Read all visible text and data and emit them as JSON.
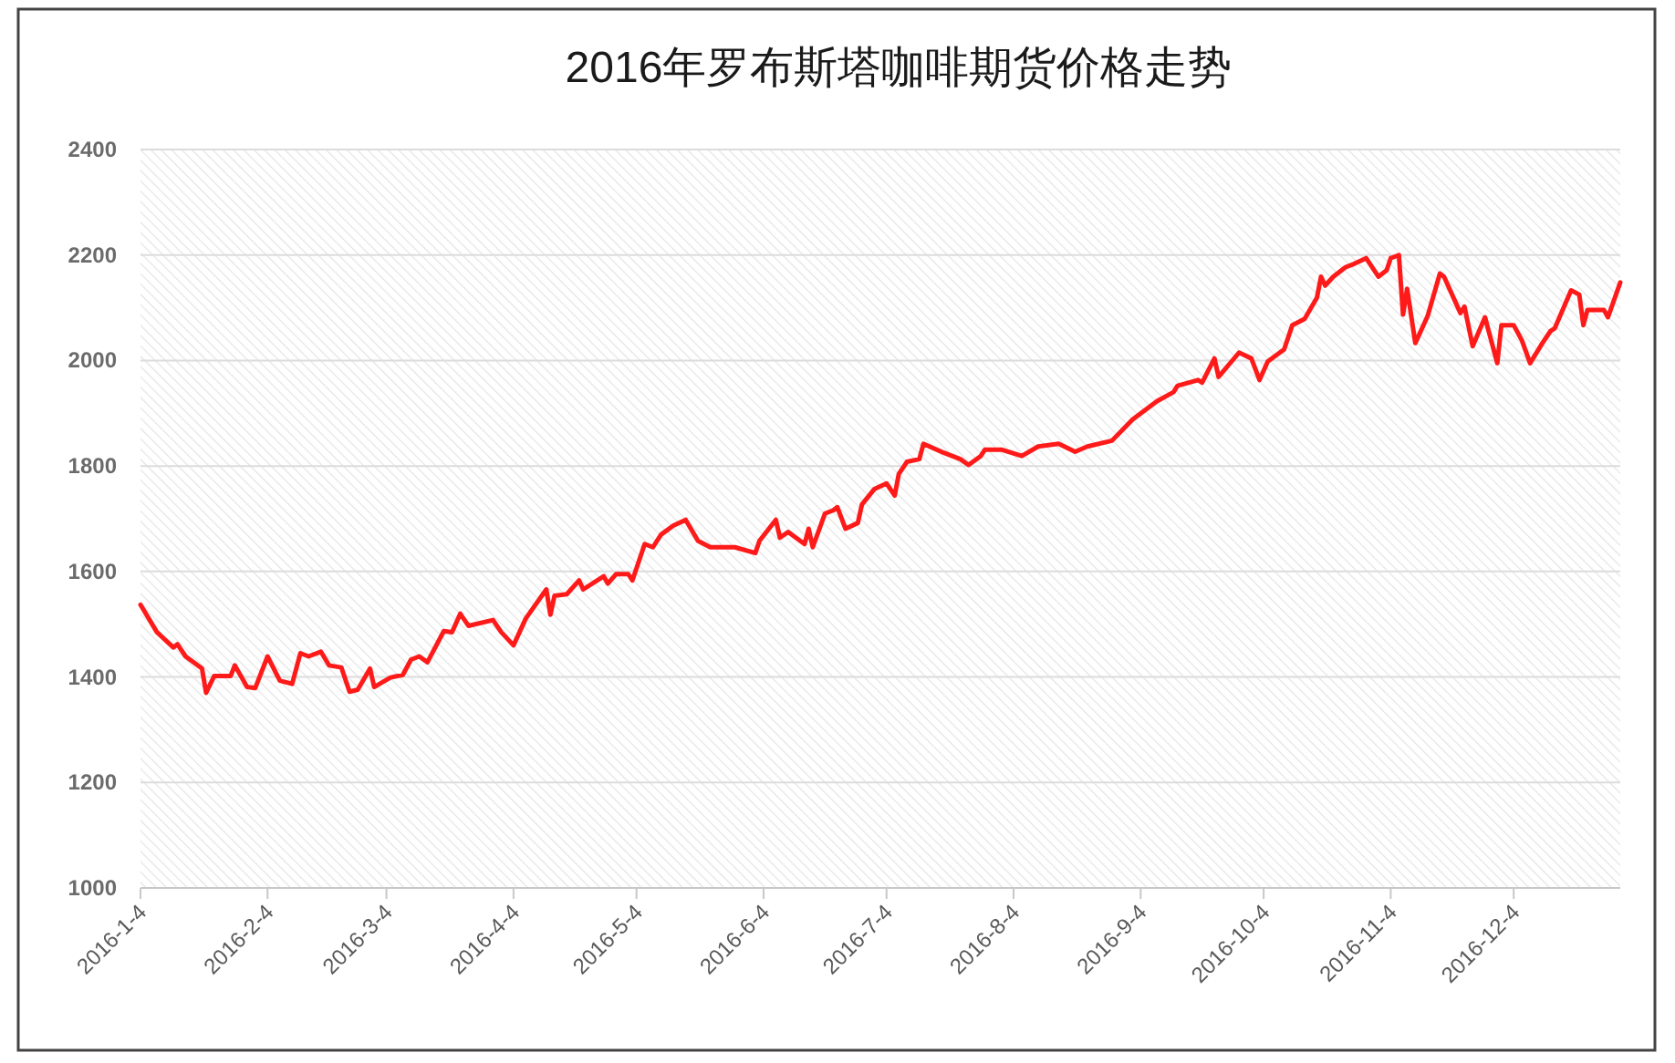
{
  "chart_data": {
    "type": "line",
    "title": "2016年罗布斯塔咖啡期货价格走势",
    "x": [
      "2016-01-04",
      "2016-01-08",
      "2016-01-12",
      "2016-01-13",
      "2016-01-15",
      "2016-01-19",
      "2016-01-20",
      "2016-01-22",
      "2016-01-26",
      "2016-01-27",
      "2016-01-30",
      "2016-02-01",
      "2016-02-04",
      "2016-02-07",
      "2016-02-10",
      "2016-02-12",
      "2016-02-14",
      "2016-02-17",
      "2016-02-19",
      "2016-02-22",
      "2016-02-24",
      "2016-02-26",
      "2016-02-29",
      "2016-03-01",
      "2016-03-05",
      "2016-03-08",
      "2016-03-10",
      "2016-03-12",
      "2016-03-14",
      "2016-03-18",
      "2016-03-20",
      "2016-03-22",
      "2016-03-24",
      "2016-03-30",
      "2016-04-01",
      "2016-04-04",
      "2016-04-07",
      "2016-04-12",
      "2016-04-13",
      "2016-04-14",
      "2016-04-17",
      "2016-04-20",
      "2016-04-21",
      "2016-04-26",
      "2016-04-27",
      "2016-04-29",
      "2016-05-02",
      "2016-05-03",
      "2016-05-06",
      "2016-05-08",
      "2016-05-10",
      "2016-05-13",
      "2016-05-16",
      "2016-05-19",
      "2016-05-22",
      "2016-05-28",
      "2016-06-02",
      "2016-06-03",
      "2016-06-07",
      "2016-06-08",
      "2016-06-10",
      "2016-06-14",
      "2016-06-15",
      "2016-06-16",
      "2016-06-19",
      "2016-06-21",
      "2016-06-22",
      "2016-06-24",
      "2016-06-27",
      "2016-06-28",
      "2016-07-01",
      "2016-07-04",
      "2016-07-06",
      "2016-07-07",
      "2016-07-09",
      "2016-07-12",
      "2016-07-13",
      "2016-07-18",
      "2016-07-22",
      "2016-07-24",
      "2016-07-27",
      "2016-07-28",
      "2016-08-01",
      "2016-08-06",
      "2016-08-10",
      "2016-08-15",
      "2016-08-19",
      "2016-08-22",
      "2016-08-28",
      "2016-09-02",
      "2016-09-08",
      "2016-09-12",
      "2016-09-13",
      "2016-09-18",
      "2016-09-19",
      "2016-09-22",
      "2016-09-23",
      "2016-09-28",
      "2016-10-01",
      "2016-10-03",
      "2016-10-05",
      "2016-10-09",
      "2016-10-11",
      "2016-10-14",
      "2016-10-17",
      "2016-10-18",
      "2016-10-19",
      "2016-10-21",
      "2016-10-24",
      "2016-10-26",
      "2016-10-29",
      "2016-11-01",
      "2016-11-03",
      "2016-11-04",
      "2016-11-06",
      "2016-11-07",
      "2016-11-08",
      "2016-11-10",
      "2016-11-13",
      "2016-11-16",
      "2016-11-17",
      "2016-11-21",
      "2016-11-22",
      "2016-11-24",
      "2016-11-27",
      "2016-11-30",
      "2016-12-01",
      "2016-12-04",
      "2016-12-06",
      "2016-12-08",
      "2016-12-11",
      "2016-12-13",
      "2016-12-14",
      "2016-12-18",
      "2016-12-20",
      "2016-12-21",
      "2016-12-22",
      "2016-12-26",
      "2016-12-27",
      "2016-12-30"
    ],
    "series": [
      {
        "color": "#ff1a1a",
        "values": [
          1537,
          1485,
          1456,
          1462,
          1439,
          1416,
          1370,
          1402,
          1402,
          1422,
          1381,
          1379,
          1439,
          1393,
          1387,
          1445,
          1439,
          1448,
          1422,
          1418,
          1372,
          1376,
          1416,
          1381,
          1399,
          1404,
          1433,
          1439,
          1428,
          1487,
          1485,
          1520,
          1497,
          1508,
          1485,
          1460,
          1511,
          1566,
          1518,
          1554,
          1557,
          1583,
          1566,
          1591,
          1577,
          1595,
          1595,
          1583,
          1652,
          1646,
          1670,
          1687,
          1698,
          1658,
          1646,
          1646,
          1635,
          1658,
          1698,
          1664,
          1675,
          1652,
          1681,
          1646,
          1710,
          1716,
          1722,
          1681,
          1692,
          1727,
          1756,
          1767,
          1744,
          1785,
          1808,
          1813,
          1842,
          1825,
          1813,
          1802,
          1819,
          1831,
          1831,
          1819,
          1837,
          1842,
          1827,
          1837,
          1848,
          1888,
          1923,
          1940,
          1952,
          1963,
          1958,
          2004,
          1969,
          2015,
          2004,
          1963,
          1998,
          2021,
          2067,
          2079,
          2119,
          2159,
          2142,
          2159,
          2177,
          2183,
          2194,
          2159,
          2171,
          2194,
          2200,
          2087,
          2136,
          2033,
          2084,
          2165,
          2159,
          2090,
          2102,
          2027,
          2082,
          1995,
          2067,
          2067,
          2038,
          1995,
          2033,
          2056,
          2061,
          2133,
          2125,
          2067,
          2096,
          2096,
          2082,
          2148
        ]
      }
    ],
    "xlim": [
      "2016-01-04",
      "2016-12-30"
    ],
    "xticks": [
      {
        "value": "2016-01-04",
        "label": "2016-1-4"
      },
      {
        "value": "2016-02-04",
        "label": "2016-2-4"
      },
      {
        "value": "2016-03-04",
        "label": "2016-3-4"
      },
      {
        "value": "2016-04-04",
        "label": "2016-4-4"
      },
      {
        "value": "2016-05-04",
        "label": "2016-5-4"
      },
      {
        "value": "2016-06-04",
        "label": "2016-6-4"
      },
      {
        "value": "2016-07-04",
        "label": "2016-7-4"
      },
      {
        "value": "2016-08-04",
        "label": "2016-8-4"
      },
      {
        "value": "2016-09-04",
        "label": "2016-9-4"
      },
      {
        "value": "2016-10-04",
        "label": "2016-10-4"
      },
      {
        "value": "2016-11-04",
        "label": "2016-11-4"
      },
      {
        "value": "2016-12-04",
        "label": "2016-12-4"
      }
    ],
    "ylim": [
      1000,
      2400
    ],
    "yticks": [
      1000,
      1200,
      1400,
      1600,
      1800,
      2000,
      2200,
      2400
    ],
    "grid": "y",
    "marker": "none",
    "line_style": "solid"
  }
}
